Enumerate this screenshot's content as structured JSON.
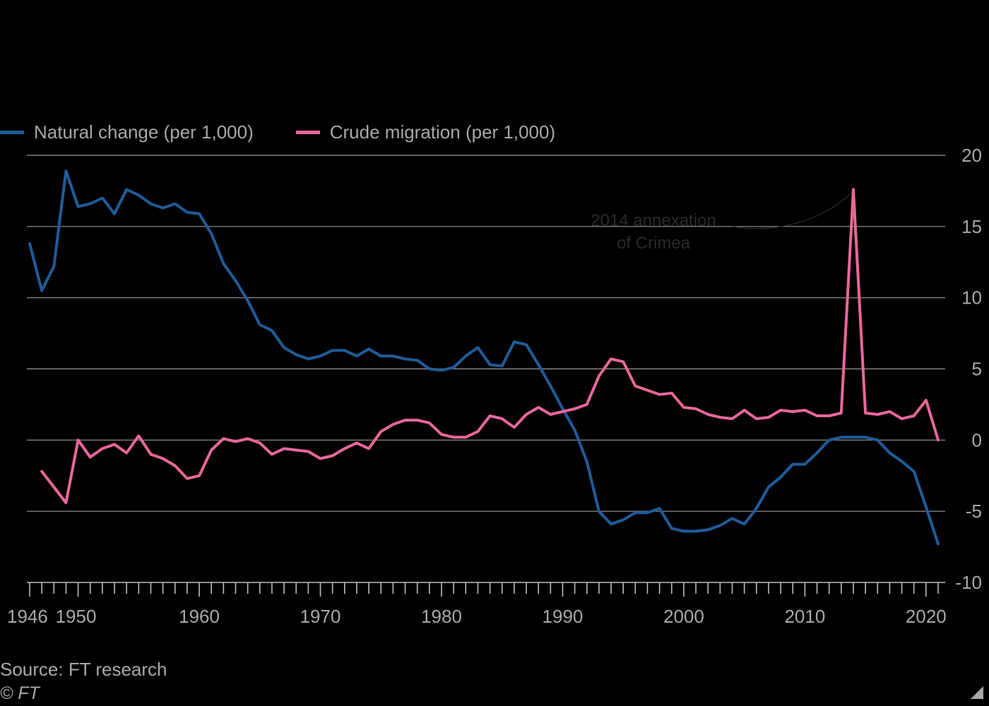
{
  "legend": {
    "natural": "Natural change (per 1,000)",
    "migration": "Crude migration (per 1,000)"
  },
  "source": "Source: FT research",
  "copyright": "© FT",
  "chart_data": {
    "type": "line",
    "x_tick_labels": [
      "1946",
      "1950",
      "1960",
      "1970",
      "1980",
      "1990",
      "2000",
      "2010",
      "2020"
    ],
    "y_tick_labels": [
      "20",
      "15",
      "10",
      "5",
      "0",
      "-5",
      "-10"
    ],
    "xlim": [
      1946,
      2021
    ],
    "ylim": [
      -10,
      20
    ],
    "grid": "horizontal",
    "y_axis_position": "right",
    "legend_position": "top-left",
    "annotation": {
      "lines": [
        "2014 annexation",
        "of Crimea"
      ],
      "x": 2014,
      "y": 17.6
    },
    "series": [
      {
        "name": "Natural change (per 1,000)",
        "color": "#1f5c99",
        "x": [
          1946,
          1947,
          1948,
          1949,
          1950,
          1951,
          1952,
          1953,
          1954,
          1955,
          1956,
          1957,
          1958,
          1959,
          1960,
          1961,
          1962,
          1963,
          1964,
          1965,
          1966,
          1967,
          1968,
          1969,
          1970,
          1971,
          1972,
          1973,
          1974,
          1975,
          1976,
          1977,
          1978,
          1979,
          1980,
          1981,
          1982,
          1983,
          1984,
          1985,
          1986,
          1987,
          1988,
          1989,
          1990,
          1991,
          1992,
          1993,
          1994,
          1995,
          1996,
          1997,
          1998,
          1999,
          2000,
          2001,
          2002,
          2003,
          2004,
          2005,
          2006,
          2007,
          2008,
          2009,
          2010,
          2011,
          2012,
          2013,
          2014,
          2015,
          2016,
          2017,
          2018,
          2019,
          2020,
          2021
        ],
        "y": [
          13.8,
          10.5,
          12.2,
          18.9,
          16.4,
          16.6,
          17.0,
          15.9,
          17.6,
          17.2,
          16.6,
          16.3,
          16.6,
          16.0,
          15.9,
          14.5,
          12.4,
          11.2,
          9.8,
          8.1,
          7.7,
          6.5,
          6.0,
          5.7,
          5.9,
          6.3,
          6.3,
          5.9,
          6.4,
          5.9,
          5.9,
          5.7,
          5.6,
          5.0,
          4.9,
          5.1,
          5.9,
          6.5,
          5.3,
          5.2,
          6.9,
          6.7,
          5.3,
          3.8,
          2.2,
          0.7,
          -1.5,
          -5.0,
          -5.9,
          -5.6,
          -5.1,
          -5.1,
          -4.8,
          -6.2,
          -6.4,
          -6.4,
          -6.3,
          -6.0,
          -5.5,
          -5.9,
          -4.8,
          -3.3,
          -2.6,
          -1.7,
          -1.7,
          -0.9,
          0.0,
          0.2,
          0.2,
          0.2,
          0.0,
          -0.9,
          -1.5,
          -2.2,
          -4.7,
          -7.3
        ]
      },
      {
        "name": "Crude migration (per 1,000)",
        "color": "#e8679b",
        "x": [
          1947,
          1948,
          1949,
          1950,
          1951,
          1952,
          1953,
          1954,
          1955,
          1956,
          1957,
          1958,
          1959,
          1960,
          1961,
          1962,
          1963,
          1964,
          1965,
          1966,
          1967,
          1968,
          1969,
          1970,
          1971,
          1972,
          1973,
          1974,
          1975,
          1976,
          1977,
          1978,
          1979,
          1980,
          1981,
          1982,
          1983,
          1984,
          1985,
          1986,
          1987,
          1988,
          1989,
          1990,
          1991,
          1992,
          1993,
          1994,
          1995,
          1996,
          1997,
          1998,
          1999,
          2000,
          2001,
          2002,
          2003,
          2004,
          2005,
          2006,
          2007,
          2008,
          2009,
          2010,
          2011,
          2012,
          2013,
          2014,
          2015,
          2016,
          2017,
          2018,
          2019,
          2020,
          2021
        ],
        "y": [
          -2.2,
          -3.3,
          -4.4,
          0.0,
          -1.2,
          -0.6,
          -0.3,
          -0.9,
          0.3,
          -1.0,
          -1.3,
          -1.8,
          -2.7,
          -2.5,
          -0.7,
          0.1,
          -0.1,
          0.1,
          -0.2,
          -1.0,
          -0.6,
          -0.7,
          -0.8,
          -1.3,
          -1.1,
          -0.6,
          -0.2,
          -0.6,
          0.6,
          1.1,
          1.4,
          1.4,
          1.2,
          0.4,
          0.2,
          0.2,
          0.6,
          1.7,
          1.5,
          0.9,
          1.8,
          2.3,
          1.8,
          2.0,
          2.2,
          2.5,
          4.5,
          5.7,
          5.5,
          3.8,
          3.5,
          3.2,
          3.3,
          2.3,
          2.2,
          1.8,
          1.6,
          1.5,
          2.1,
          1.5,
          1.6,
          2.1,
          2.0,
          2.1,
          1.7,
          1.7,
          1.9,
          17.6,
          1.9,
          1.8,
          2.0,
          1.5,
          1.7,
          2.8,
          0.0
        ]
      }
    ]
  }
}
